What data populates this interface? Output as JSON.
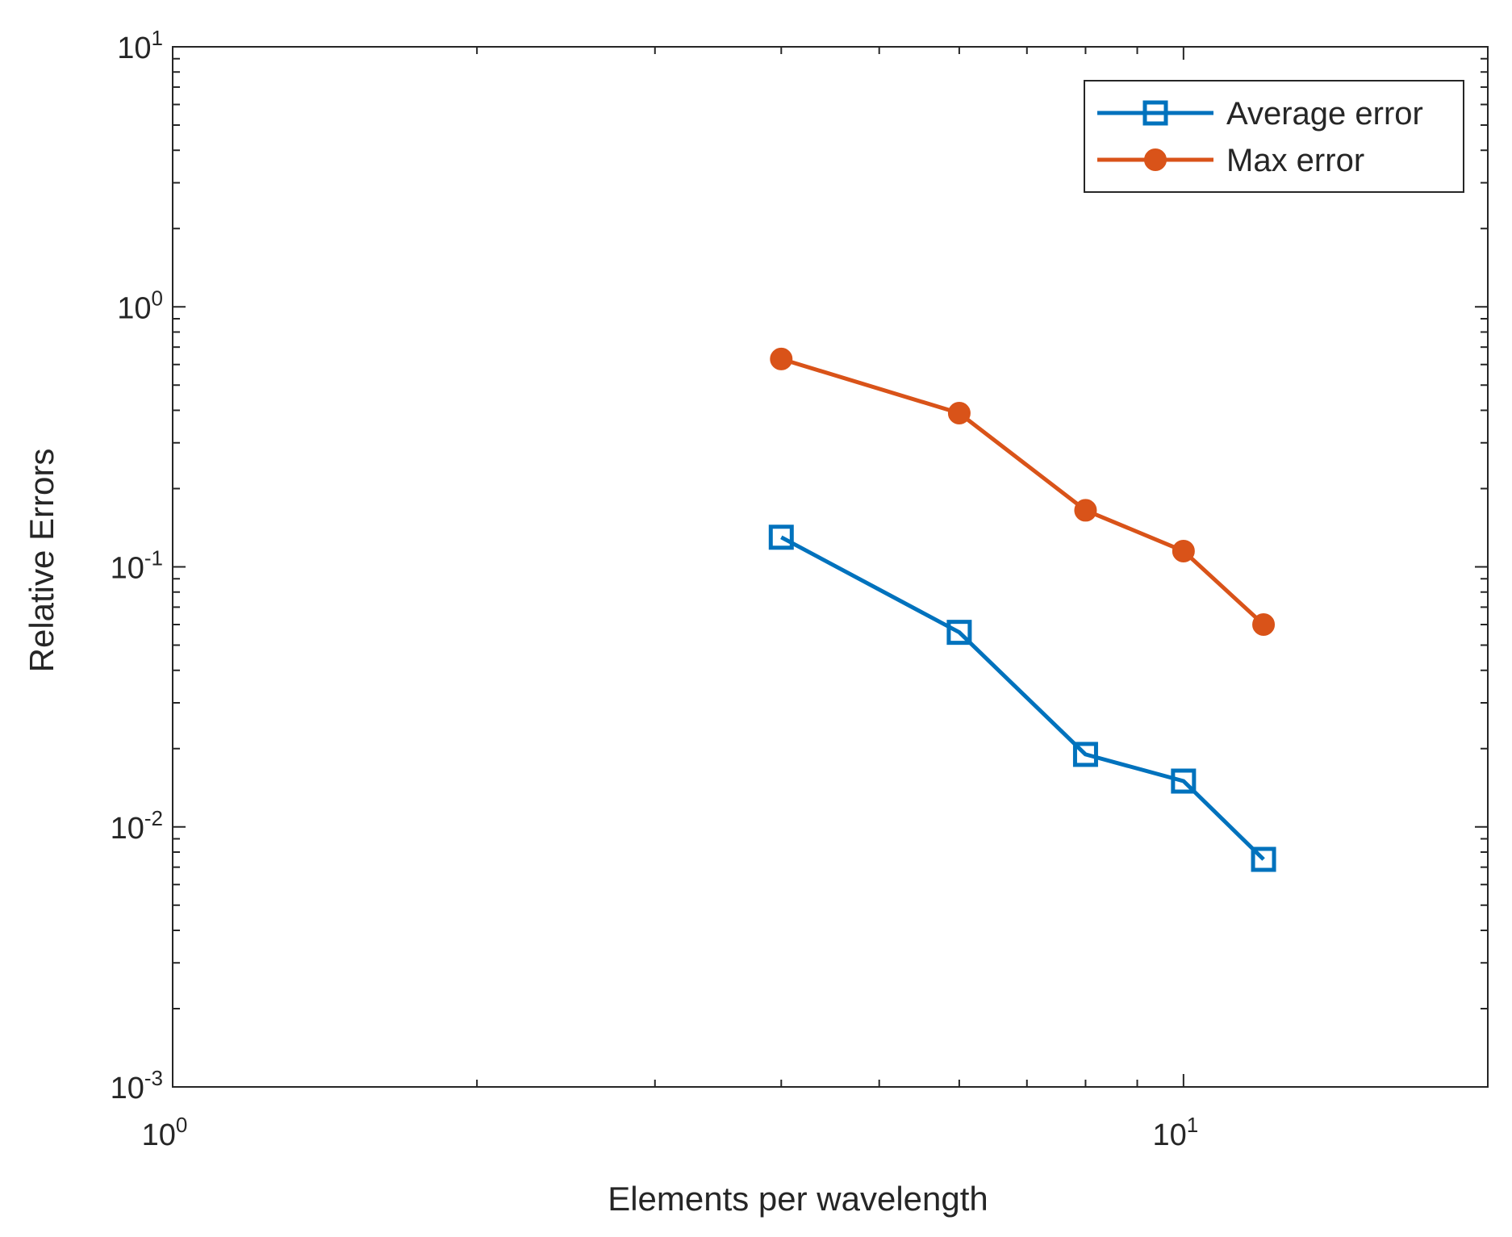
{
  "chart_data": {
    "type": "line",
    "scale": {
      "x": "log",
      "y": "log"
    },
    "xlabel": "Elements per wavelength",
    "ylabel": "Relative Errors",
    "xlim": [
      1,
      20
    ],
    "ylim": [
      0.001,
      10
    ],
    "grid": false,
    "x_ticks": [
      {
        "value": 1,
        "base": "10",
        "exp": "0"
      },
      {
        "value": 10,
        "base": "10",
        "exp": "1"
      }
    ],
    "y_ticks": [
      {
        "value": 0.001,
        "base": "10",
        "exp": "-3"
      },
      {
        "value": 0.01,
        "base": "10",
        "exp": "-2"
      },
      {
        "value": 0.1,
        "base": "10",
        "exp": "-1"
      },
      {
        "value": 1,
        "base": "10",
        "exp": "0"
      },
      {
        "value": 10,
        "base": "10",
        "exp": "1"
      }
    ],
    "legend_position": "top-right",
    "series": [
      {
        "name": "Average error",
        "color": "#0072BD",
        "marker": "square",
        "x": [
          4,
          6,
          8,
          10,
          12
        ],
        "y": [
          0.13,
          0.056,
          0.019,
          0.015,
          0.0075
        ]
      },
      {
        "name": "Max error",
        "color": "#D95319",
        "marker": "circle",
        "x": [
          4,
          6,
          8,
          10,
          12
        ],
        "y": [
          0.63,
          0.39,
          0.165,
          0.115,
          0.06
        ]
      }
    ]
  }
}
